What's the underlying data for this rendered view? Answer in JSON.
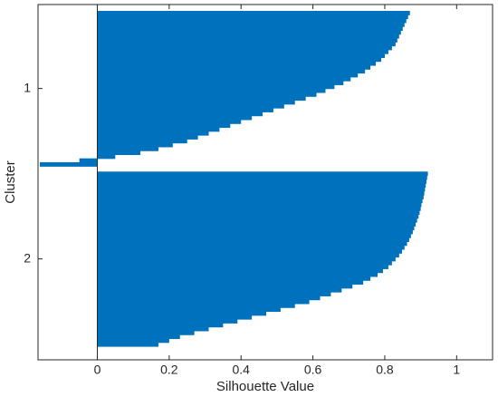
{
  "chart_data": {
    "type": "silhouette",
    "xlabel": "Silhouette Value",
    "ylabel": "Cluster",
    "categories": [
      "1",
      "2"
    ],
    "values": [
      [
        0.87,
        0.865,
        0.86,
        0.855,
        0.85,
        0.845,
        0.84,
        0.835,
        0.83,
        0.82,
        0.81,
        0.8,
        0.79,
        0.775,
        0.76,
        0.745,
        0.725,
        0.705,
        0.685,
        0.66,
        0.635,
        0.61,
        0.58,
        0.55,
        0.52,
        0.49,
        0.46,
        0.43,
        0.4,
        0.37,
        0.34,
        0.31,
        0.28,
        0.25,
        0.21,
        0.17,
        0.12,
        0.05,
        -0.05,
        -0.16
      ],
      [
        0.92,
        0.918,
        0.916,
        0.914,
        0.912,
        0.91,
        0.908,
        0.905,
        0.902,
        0.9,
        0.897,
        0.894,
        0.89,
        0.886,
        0.882,
        0.878,
        0.873,
        0.868,
        0.862,
        0.855,
        0.848,
        0.84,
        0.83,
        0.82,
        0.81,
        0.795,
        0.78,
        0.76,
        0.74,
        0.71,
        0.68,
        0.65,
        0.62,
        0.59,
        0.55,
        0.51,
        0.47,
        0.43,
        0.39,
        0.35,
        0.31,
        0.27,
        0.23,
        0.2,
        0.17
      ]
    ],
    "color": "#0072bd",
    "xlim": [
      -0.165,
      1.1
    ],
    "xticks": [
      0,
      0.2,
      0.4,
      0.6,
      0.8,
      1
    ]
  }
}
